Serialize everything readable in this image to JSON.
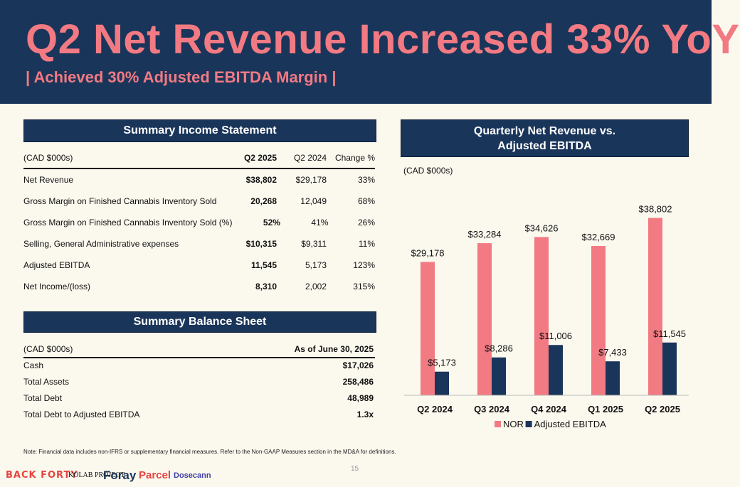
{
  "header": {
    "title": "Q2 Net Revenue Increased 33% YoY",
    "subtitle": "| Achieved 30% Adjusted EBITDA Margin |"
  },
  "income_statement": {
    "title": "Summary Income Statement",
    "units": "(CAD $000s)",
    "columns": [
      "Q2 2025",
      "Q2 2024",
      "Change %"
    ],
    "rows": [
      {
        "label": "Net Revenue",
        "q2_2025": "$38,802",
        "q2_2024": "$29,178",
        "change": "33%"
      },
      {
        "label": "Gross Margin on Finished Cannabis Inventory Sold",
        "q2_2025": "20,268",
        "q2_2024": "12,049",
        "change": "68%"
      },
      {
        "label": "Gross Margin on Finished Cannabis Inventory Sold (%)",
        "q2_2025": "52%",
        "q2_2024": "41%",
        "change": "26%"
      },
      {
        "label": "Selling, General Administrative expenses",
        "q2_2025": "$10,315",
        "q2_2024": "$9,311",
        "change": "11%"
      },
      {
        "label": "Adjusted EBITDA",
        "q2_2025": "11,545",
        "q2_2024": "5,173",
        "change": "123%"
      },
      {
        "label": "Net Income/(loss)",
        "q2_2025": "8,310",
        "q2_2024": "2,002",
        "change": "315%"
      }
    ]
  },
  "balance_sheet": {
    "title": "Summary Balance Sheet",
    "units": "(CAD $000s)",
    "column": "As of June 30, 2025",
    "rows": [
      {
        "label": "Cash",
        "value": "$17,026"
      },
      {
        "label": "Total Assets",
        "value": "258,486"
      },
      {
        "label": "Total Debt",
        "value": "48,989"
      },
      {
        "label": "Total Debt to Adjusted EBITDA",
        "value": "1.3x"
      }
    ]
  },
  "chart_panel": {
    "title_line1": "Quarterly Net Revenue vs.",
    "title_line2": "Adjusted EBITDA",
    "units": "(CAD $000s)"
  },
  "chart_data": {
    "type": "bar",
    "categories": [
      "Q2 2024",
      "Q3 2024",
      "Q4 2024",
      "Q1 2025",
      "Q2 2025"
    ],
    "series": [
      {
        "name": "NOR",
        "values": [
          29178,
          33284,
          34626,
          32669,
          38802
        ],
        "labels": [
          "$29,178",
          "$33,284",
          "$34,626",
          "$32,669",
          "$38,802"
        ],
        "color": "#f27a83"
      },
      {
        "name": "Adjusted EBITDA",
        "values": [
          5173,
          8286,
          11006,
          7433,
          11545
        ],
        "labels": [
          "$5,173",
          "$8,286",
          "$11,006",
          "$7,433",
          "$11,545"
        ],
        "color": "#1a355a"
      }
    ],
    "ylim": [
      0,
      42000
    ],
    "legend": "bottom",
    "grid": false
  },
  "note": "Note: Financial data includes non-IFRS or supplementary financial measures. Refer to the Non-GAAP Measures section in the MD&A for definitions.",
  "page_number": "15",
  "logos": [
    "BACK FORTY",
    "KOLAB PROJECT",
    "Foray",
    "Parcel",
    "Dosecann"
  ],
  "colors": {
    "navy": "#1a355a",
    "pink": "#f27a83",
    "background": "#fbf8ee"
  }
}
